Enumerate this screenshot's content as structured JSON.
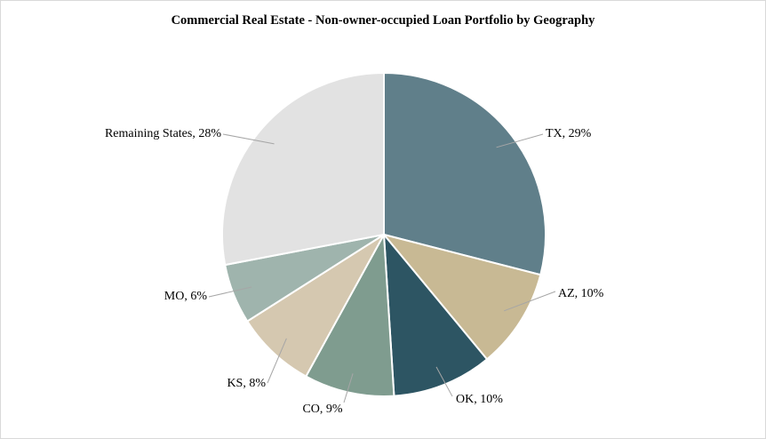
{
  "chart_data": {
    "type": "pie",
    "title": "Commercial Real Estate - Non-owner-occupied Loan Portfolio by Geography",
    "slices": [
      {
        "label": "TX, 29%",
        "value": 29,
        "color": "#607f8a"
      },
      {
        "label": "AZ, 10%",
        "value": 10,
        "color": "#c8b994"
      },
      {
        "label": "OK, 10%",
        "value": 10,
        "color": "#2d5563"
      },
      {
        "label": "CO, 9%",
        "value": 9,
        "color": "#7f9c8f"
      },
      {
        "label": "KS, 8%",
        "value": 8,
        "color": "#d5c8b0"
      },
      {
        "label": "MO, 6%",
        "value": 6,
        "color": "#9fb4ad"
      },
      {
        "label": "Remaining States, 28%",
        "value": 28,
        "color": "#e2e2e2"
      }
    ],
    "legend": "none",
    "start_angle_deg": 0,
    "direction": "clockwise"
  }
}
